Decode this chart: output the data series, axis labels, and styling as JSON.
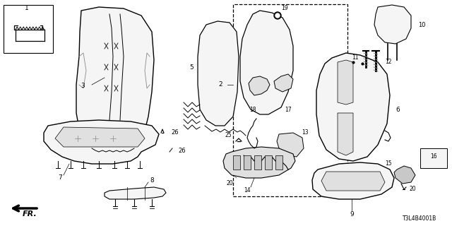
{
  "background_color": "#ffffff",
  "diagram_code": "T3L4B4001B",
  "line_color": "#000000",
  "light_fill": "#f5f5f5",
  "mid_fill": "#e0e0e0",
  "dark_fill": "#c8c8c8"
}
